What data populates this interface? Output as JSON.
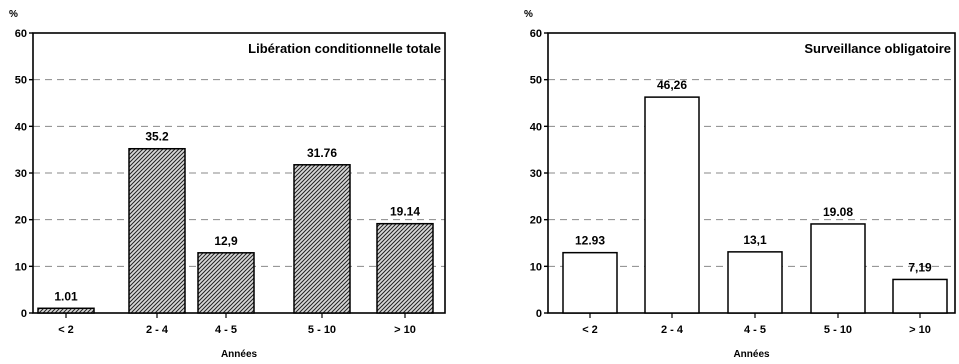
{
  "chart_data": [
    {
      "type": "bar",
      "title": "Libération conditionnelle totale",
      "ylabel": "%",
      "xlabel": "Années",
      "categories": [
        "< 2",
        "2 - 4",
        "4 - 5",
        "5 - 10",
        "> 10"
      ],
      "values": [
        1.01,
        35.2,
        12.9,
        31.76,
        19.14
      ],
      "value_labels": [
        "1.01",
        "35.2",
        "12,9",
        "31.76",
        "19.14"
      ],
      "ylim": [
        0,
        60
      ],
      "yticks": [
        0,
        10,
        20,
        30,
        40,
        50,
        60
      ],
      "grid": true,
      "bar_fill": "hatched",
      "bar_color": "#9a9a9a"
    },
    {
      "type": "bar",
      "title": "Surveillance obligatoire",
      "ylabel": "%",
      "xlabel": "Années",
      "categories": [
        "< 2",
        "2 - 4",
        "4 - 5",
        "5 - 10",
        "> 10"
      ],
      "values": [
        12.93,
        46.26,
        13.1,
        19.08,
        7.19
      ],
      "value_labels": [
        "12.93",
        "46,26",
        "13,1",
        "19.08",
        "7,19"
      ],
      "ylim": [
        0,
        60
      ],
      "yticks": [
        0,
        10,
        20,
        30,
        40,
        50,
        60
      ],
      "grid": true,
      "bar_fill": "outline",
      "bar_color": "#000000"
    }
  ]
}
